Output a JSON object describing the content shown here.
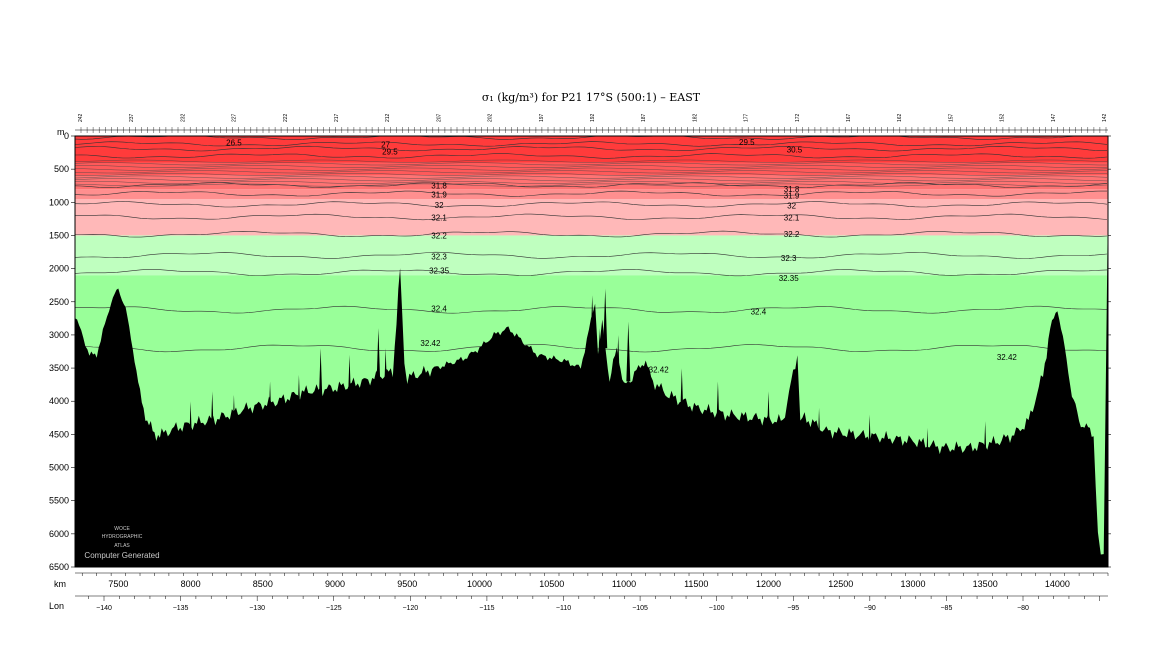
{
  "chart_data": {
    "type": "section",
    "title": "σ₁ (kg/m³) for P21 17°S (500:1) – EAST",
    "ylabel": "m",
    "xlabel": "km",
    "x2label": "Lon",
    "xlim": [
      7200,
      14350
    ],
    "ylim": [
      0,
      6500
    ],
    "y_ticks": [
      0,
      500,
      1000,
      1500,
      2000,
      2500,
      3000,
      3500,
      4000,
      4500,
      5000,
      5500,
      6000,
      6500
    ],
    "x_ticks": [
      7500,
      8000,
      8500,
      9000,
      9500,
      10000,
      10500,
      11000,
      11500,
      12000,
      12500,
      13000,
      13500,
      14000
    ],
    "lon_ticks": [
      -140,
      -135,
      -130,
      -125,
      -120,
      -115,
      -110,
      -105,
      -100,
      -95,
      -90,
      -85,
      -80
    ],
    "color_bands": [
      {
        "from": 0,
        "to": 400,
        "color": "#ff3b3b"
      },
      {
        "from": 400,
        "to": 600,
        "color": "#ff5a5a"
      },
      {
        "from": 600,
        "to": 800,
        "color": "#ff7373"
      },
      {
        "from": 800,
        "to": 950,
        "color": "#ff8f8f"
      },
      {
        "from": 950,
        "to": 1500,
        "color": "#ffb8b8"
      },
      {
        "from": 1500,
        "to": 2100,
        "color": "#bfffbf"
      },
      {
        "from": 2100,
        "to": 6500,
        "color": "#99ff99"
      }
    ],
    "contours": [
      {
        "label": "26.5",
        "depth": 20
      },
      {
        "label": "27",
        "depth": 120
      },
      {
        "label": "29.5",
        "depth": 190
      },
      {
        "label": "30",
        "depth": 300
      },
      {
        "label": "31.8",
        "depth": 740
      },
      {
        "label": "31.9",
        "depth": 870
      },
      {
        "label": "32",
        "depth": 1030
      },
      {
        "label": "32.1",
        "depth": 1220
      },
      {
        "label": "32.2",
        "depth": 1480
      },
      {
        "label": "32.3",
        "depth": 1800
      },
      {
        "label": "32.35",
        "depth": 2060
      },
      {
        "label": "32.4",
        "depth": 2620
      },
      {
        "label": "32.42",
        "depth": 3200
      }
    ],
    "contour_labels": [
      {
        "text": "26.5",
        "x": 8300,
        "depth": 100
      },
      {
        "text": "27",
        "x": 9350,
        "depth": 130
      },
      {
        "text": "29.5",
        "x": 9380,
        "depth": 230
      },
      {
        "text": "31.8",
        "x": 9720,
        "depth": 750
      },
      {
        "text": "31.9",
        "x": 9720,
        "depth": 880
      },
      {
        "text": "32",
        "x": 9720,
        "depth": 1040
      },
      {
        "text": "32.1",
        "x": 9720,
        "depth": 1230
      },
      {
        "text": "32.2",
        "x": 9720,
        "depth": 1500
      },
      {
        "text": "32.3",
        "x": 9720,
        "depth": 1820
      },
      {
        "text": "32.35",
        "x": 9720,
        "depth": 2030
      },
      {
        "text": "32.4",
        "x": 9720,
        "depth": 2600
      },
      {
        "text": "32.42",
        "x": 9660,
        "depth": 3120
      },
      {
        "text": "29.5",
        "x": 11850,
        "depth": 90
      },
      {
        "text": "30.5",
        "x": 12180,
        "depth": 200
      },
      {
        "text": "31.8",
        "x": 12160,
        "depth": 800
      },
      {
        "text": "31.9",
        "x": 12160,
        "depth": 900
      },
      {
        "text": "32",
        "x": 12160,
        "depth": 1050
      },
      {
        "text": "32.1",
        "x": 12160,
        "depth": 1230
      },
      {
        "text": "32.2",
        "x": 12160,
        "depth": 1480
      },
      {
        "text": "32.3",
        "x": 12140,
        "depth": 1840
      },
      {
        "text": "32.35",
        "x": 12140,
        "depth": 2140
      },
      {
        "text": "32.4",
        "x": 11930,
        "depth": 2650
      },
      {
        "text": "32.42",
        "x": 11240,
        "depth": 3520
      },
      {
        "text": "32.42",
        "x": 13650,
        "depth": 3330
      }
    ],
    "bathymetry": {
      "x": [
        7200,
        7300,
        7350,
        7450,
        7500,
        7550,
        7600,
        7650,
        7700,
        7750,
        7800,
        7900,
        8000,
        8200,
        8400,
        8600,
        8800,
        9000,
        9200,
        9400,
        9450,
        9480,
        9500,
        9700,
        9900,
        10000,
        10100,
        10200,
        10300,
        10400,
        10600,
        10700,
        10800,
        10820,
        10850,
        10900,
        10950,
        11000,
        11100,
        11150,
        11200,
        11300,
        11500,
        11700,
        11900,
        12100,
        12200,
        12220,
        12250,
        12400,
        12600,
        12800,
        13000,
        13200,
        13400,
        13600,
        13700,
        13800,
        13900,
        13950,
        14000,
        14050,
        14100,
        14150,
        14200,
        14250,
        14280,
        14300,
        14320,
        14350
      ],
      "depth": [
        2700,
        3300,
        3300,
        2500,
        2300,
        2600,
        3200,
        3900,
        4300,
        4500,
        4500,
        4400,
        4350,
        4250,
        4100,
        4000,
        3850,
        3800,
        3700,
        3550,
        2000,
        3400,
        3650,
        3500,
        3350,
        3200,
        3000,
        2900,
        3100,
        3300,
        3400,
        3500,
        2500,
        3300,
        2800,
        3700,
        3200,
        3800,
        3500,
        3400,
        3700,
        3900,
        4100,
        4200,
        4250,
        4300,
        3300,
        4300,
        4250,
        4450,
        4500,
        4550,
        4600,
        4700,
        4700,
        4600,
        4500,
        4300,
        3600,
        2900,
        2600,
        3200,
        3900,
        4300,
        4400,
        4500,
        6000,
        6400,
        6300,
        1000
      ],
      "spikes": [
        {
          "x": 8000,
          "depth": 4000
        },
        {
          "x": 8150,
          "depth": 3850
        },
        {
          "x": 8300,
          "depth": 3900
        },
        {
          "x": 8550,
          "depth": 3700
        },
        {
          "x": 8750,
          "depth": 3600
        },
        {
          "x": 8900,
          "depth": 3200
        },
        {
          "x": 9100,
          "depth": 3300
        },
        {
          "x": 9300,
          "depth": 2900
        },
        {
          "x": 9350,
          "depth": 3200
        },
        {
          "x": 10780,
          "depth": 2400
        },
        {
          "x": 10830,
          "depth": 2900
        },
        {
          "x": 10870,
          "depth": 2300
        },
        {
          "x": 10960,
          "depth": 3000
        },
        {
          "x": 11030,
          "depth": 2800
        },
        {
          "x": 11400,
          "depth": 3500
        },
        {
          "x": 11650,
          "depth": 3700
        },
        {
          "x": 12000,
          "depth": 3850
        },
        {
          "x": 12350,
          "depth": 4100
        },
        {
          "x": 12700,
          "depth": 4200
        },
        {
          "x": 13100,
          "depth": 4400
        },
        {
          "x": 13500,
          "depth": 4300
        }
      ]
    },
    "station_labels": [
      "242",
      "237",
      "232",
      "227",
      "222",
      "217",
      "212",
      "207",
      "202",
      "197",
      "192",
      "187",
      "182",
      "177",
      "172",
      "167",
      "162",
      "157",
      "152",
      "147",
      "142",
      "137",
      "132"
    ],
    "watermark": {
      "line1": "WOCE",
      "line2": "HYDROGRAPHIC",
      "line3": "ATLAS",
      "line4": "Computer Generated"
    }
  }
}
